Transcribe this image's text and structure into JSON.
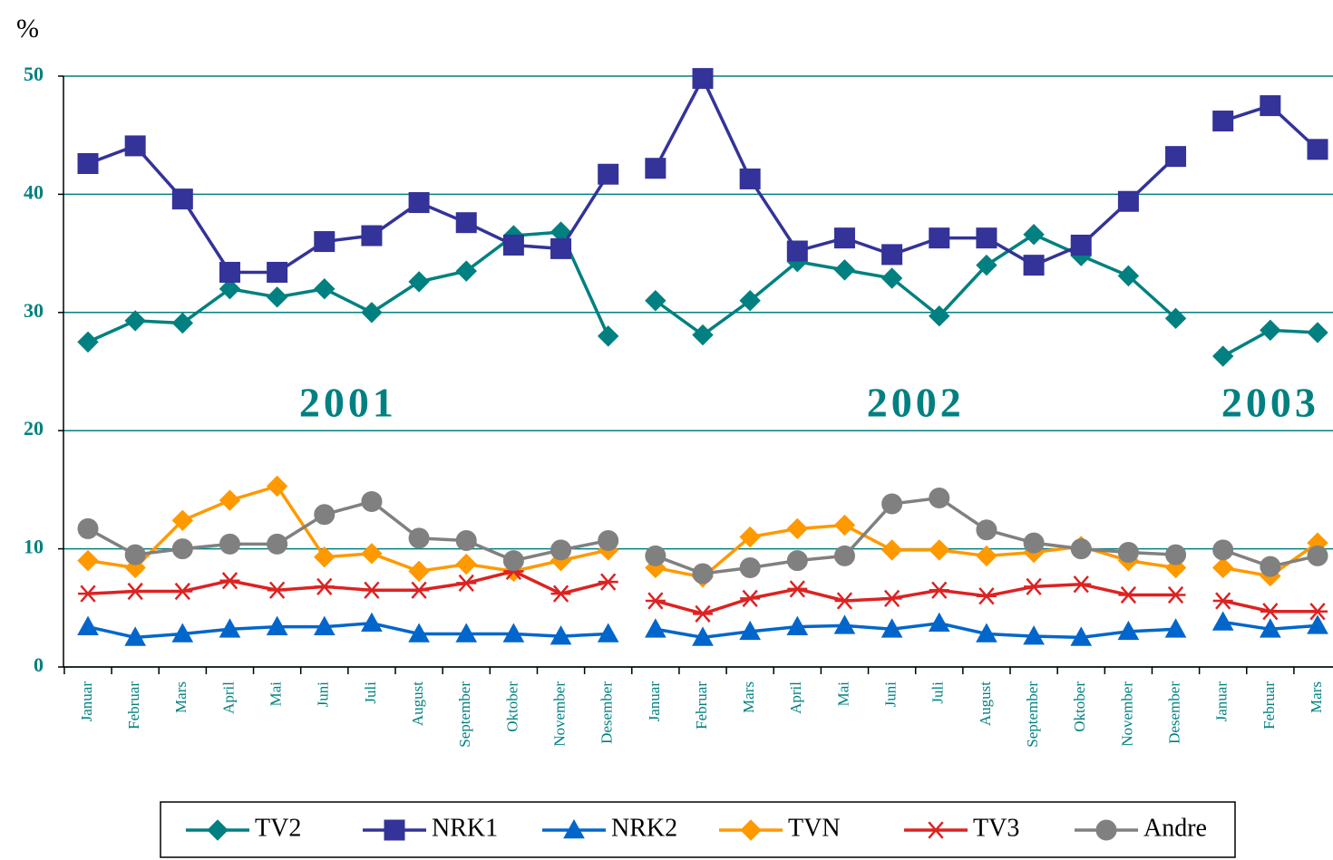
{
  "chart_data": {
    "type": "line",
    "y_label": "%",
    "categories": [
      "Januar",
      "Februar",
      "Mars",
      "April",
      "Mai",
      "Juni",
      "Juli",
      "August",
      "September",
      "Oktober",
      "November",
      "Desember",
      "Januar",
      "Februar",
      "Mars",
      "April",
      "Mai",
      "Juni",
      "Juli",
      "August",
      "September",
      "Oktober",
      "November",
      "Desember",
      "Januar",
      "Februar",
      "Mars"
    ],
    "groups": [
      {
        "label": "2001",
        "size": 12
      },
      {
        "label": "2002",
        "size": 12
      },
      {
        "label": "2003",
        "size": 3
      }
    ],
    "series": [
      {
        "name": "TV2",
        "color": "#008080",
        "marker": "diamond",
        "values": [
          27.5,
          29.3,
          29.1,
          32.0,
          31.3,
          32.0,
          30.0,
          32.6,
          33.5,
          36.5,
          36.8,
          28.0,
          31.0,
          28.1,
          31.0,
          34.3,
          33.6,
          32.9,
          29.7,
          34.0,
          36.6,
          34.8,
          33.1,
          29.5,
          26.3,
          28.5,
          28.3
        ]
      },
      {
        "name": "NRK1",
        "color": "#333399",
        "marker": "square",
        "values": [
          42.6,
          44.1,
          39.6,
          33.4,
          33.4,
          36.0,
          36.5,
          39.3,
          37.6,
          35.7,
          35.4,
          41.7,
          42.2,
          49.8,
          41.3,
          35.2,
          36.3,
          34.9,
          36.3,
          36.3,
          34.0,
          35.7,
          39.4,
          43.2,
          46.2,
          47.5,
          43.8
        ]
      },
      {
        "name": "NRK2",
        "color": "#0066cc",
        "marker": "triangle",
        "values": [
          3.4,
          2.5,
          2.8,
          3.2,
          3.4,
          3.4,
          3.7,
          2.8,
          2.8,
          2.8,
          2.6,
          2.8,
          3.2,
          2.5,
          3.0,
          3.4,
          3.5,
          3.2,
          3.7,
          2.8,
          2.6,
          2.5,
          3.0,
          3.2,
          3.8,
          3.2,
          3.5
        ]
      },
      {
        "name": "TVN",
        "color": "#ff9900",
        "marker": "diamond",
        "values": [
          9.0,
          8.4,
          12.4,
          14.1,
          15.3,
          9.3,
          9.6,
          8.1,
          8.7,
          8.1,
          9.0,
          9.9,
          8.4,
          7.6,
          11.0,
          11.7,
          12.0,
          9.9,
          9.9,
          9.4,
          9.7,
          10.2,
          9.0,
          8.4,
          8.4,
          7.7,
          10.5
        ]
      },
      {
        "name": "TV3",
        "color": "#dd2222",
        "marker": "star",
        "values": [
          6.2,
          6.4,
          6.4,
          7.3,
          6.5,
          6.8,
          6.5,
          6.5,
          7.1,
          8.1,
          6.2,
          7.2,
          5.6,
          4.5,
          5.8,
          6.6,
          5.6,
          5.8,
          6.5,
          6.0,
          6.8,
          7.0,
          6.1,
          6.1,
          5.6,
          4.7,
          4.7
        ]
      },
      {
        "name": "Andre",
        "color": "#808080",
        "marker": "circle",
        "values": [
          11.7,
          9.5,
          10.0,
          10.4,
          10.4,
          12.9,
          14.0,
          10.9,
          10.7,
          9.0,
          9.9,
          10.7,
          9.4,
          7.9,
          8.4,
          9.0,
          9.4,
          13.8,
          14.3,
          11.6,
          10.5,
          10.0,
          9.7,
          9.5,
          9.9,
          8.5,
          9.4
        ]
      }
    ],
    "ylim": [
      0,
      50
    ],
    "yticks": [
      0,
      10,
      20,
      30,
      40,
      50
    ],
    "grid": true,
    "legend": "bottom"
  }
}
